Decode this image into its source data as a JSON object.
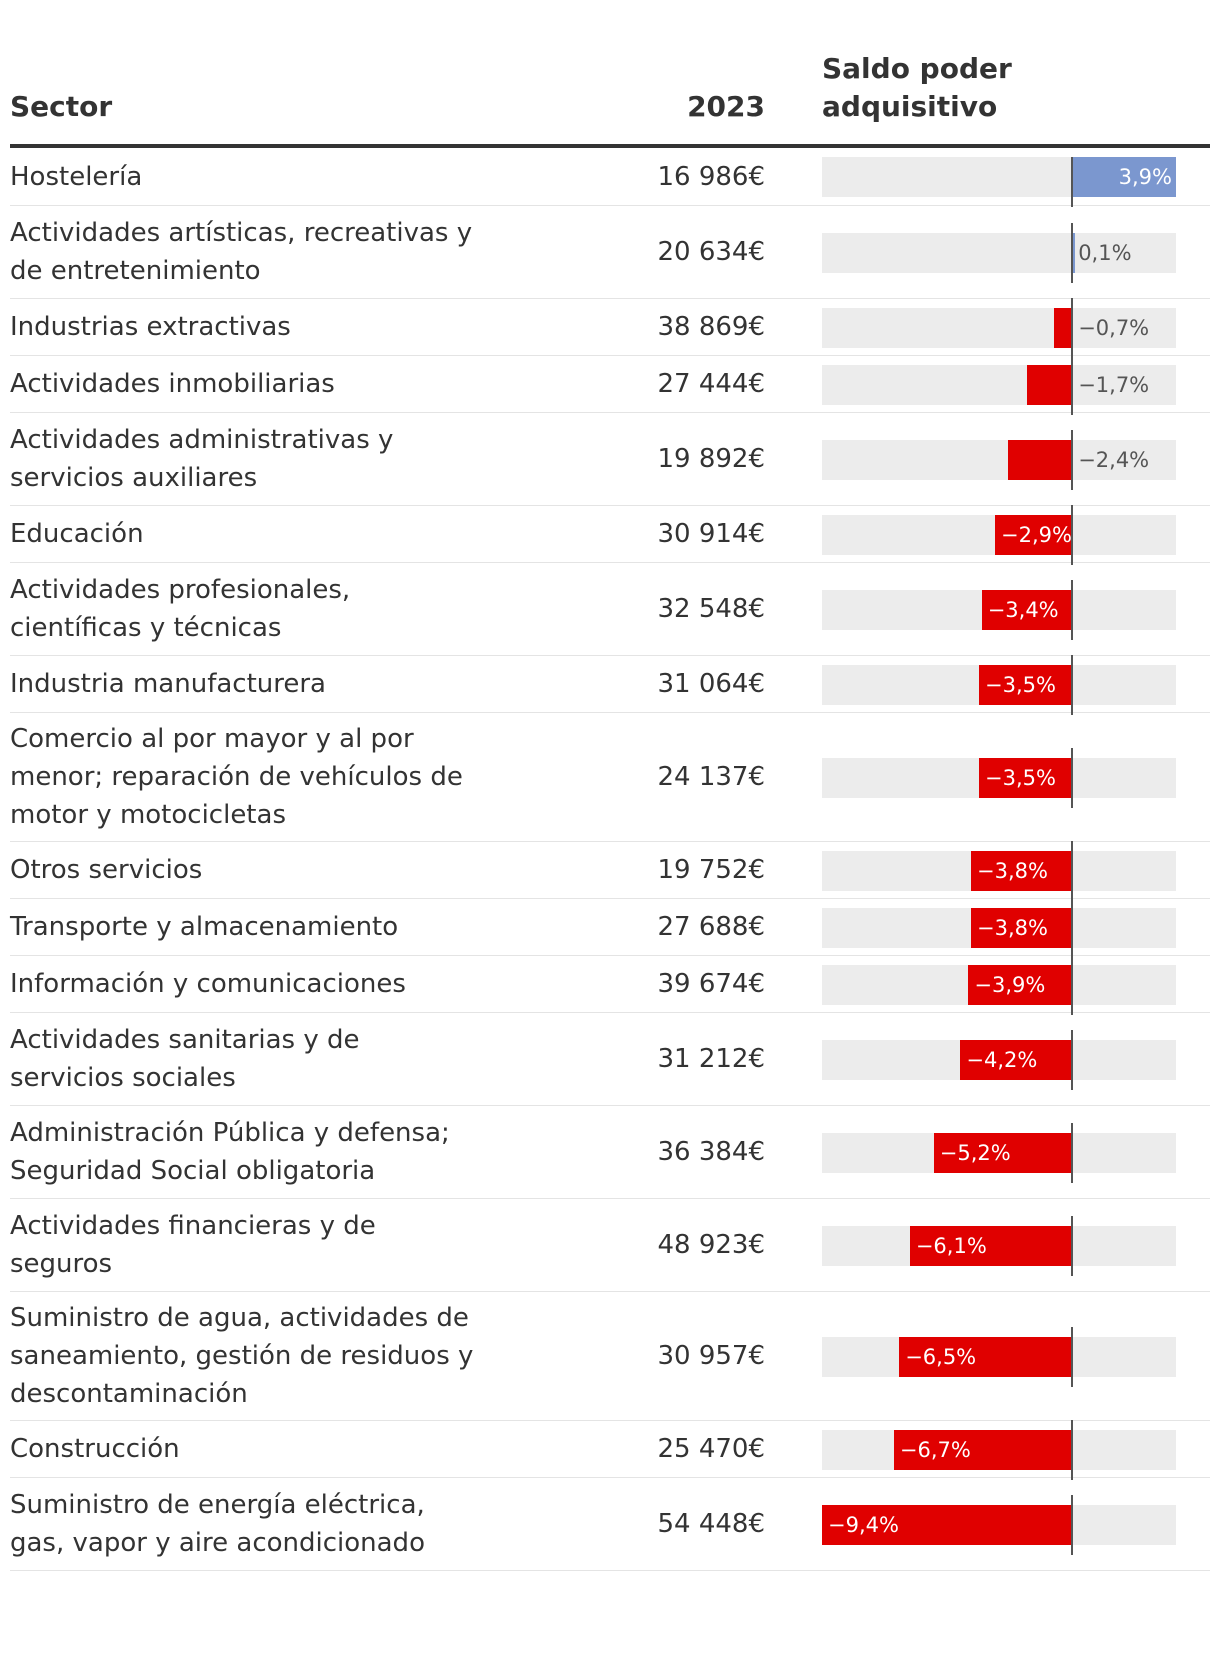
{
  "headers": {
    "sector": "Sector",
    "year": "2023",
    "saldo_line1": "Saldo poder",
    "saldo_line2": "adquisitivo"
  },
  "colors": {
    "positive": "#7b97cf",
    "negative": "#e00000",
    "track": "#ececec",
    "axis": "#555555"
  },
  "chart_data": {
    "type": "bar",
    "orientation": "horizontal",
    "xlim": [
      -9.4,
      3.9
    ],
    "categories": [
      "Hostelería",
      "Actividades artísticas, recreativas y de entretenimiento",
      "Industrias extractivas",
      "Actividades inmobiliarias",
      "Actividades administrativas y servicios auxiliares",
      "Educación",
      "Actividades profesionales, científicas y técnicas",
      "Industria manufacturera",
      "Comercio al por mayor y al por menor; reparación de vehículos de motor y motocicletas",
      "Otros servicios",
      "Transporte y almacenamiento",
      "Información y comunicaciones",
      "Actividades sanitarias y de servicios sociales",
      "Administración Pública y defensa; Seguridad Social obligatoria",
      "Actividades financieras y de seguros",
      "Suministro de agua, actividades de saneamiento, gestión de residuos y descontaminación",
      "Construcción",
      "Suministro de energía eléctrica, gas, vapor y aire acondicionado"
    ],
    "salary_2023": [
      "16 986€",
      "20 634€",
      "38 869€",
      "27 444€",
      "19 892€",
      "30 914€",
      "32 548€",
      "31 064€",
      "24 137€",
      "19 752€",
      "27 688€",
      "39 674€",
      "31 212€",
      "36 384€",
      "48 923€",
      "30 957€",
      "25 470€",
      "54 448€"
    ],
    "values": [
      3.9,
      0.1,
      -0.7,
      -1.7,
      -2.4,
      -2.9,
      -3.4,
      -3.5,
      -3.5,
      -3.8,
      -3.8,
      -3.9,
      -4.2,
      -5.2,
      -6.1,
      -6.5,
      -6.7,
      -9.4
    ],
    "labels": [
      "3,9%",
      "0,1%",
      "−0,7%",
      "−1,7%",
      "−2,4%",
      "−2,9%",
      "−3,4%",
      "−3,5%",
      "−3,5%",
      "−3,8%",
      "−3,8%",
      "−3,9%",
      "−4,2%",
      "−5,2%",
      "−6,1%",
      "−6,5%",
      "−6,7%",
      "−9,4%"
    ]
  }
}
